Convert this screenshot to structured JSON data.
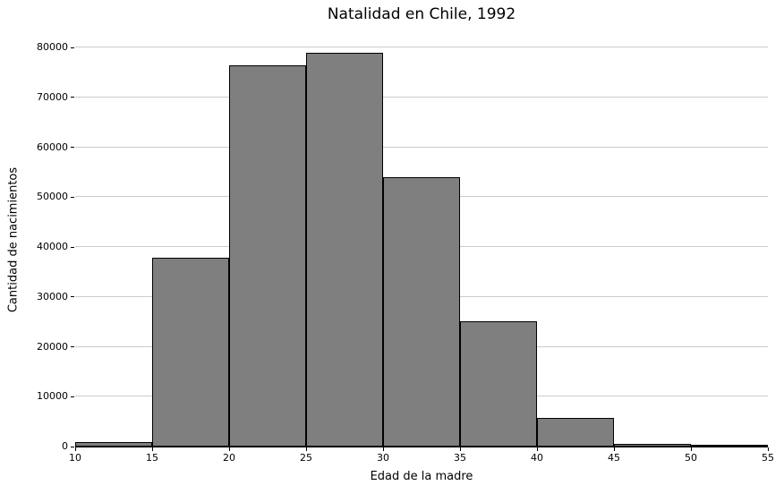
{
  "chart_data": {
    "type": "bar",
    "subtype": "histogram",
    "title": "Natalidad en Chile, 1992",
    "xlabel": "Edad de la madre",
    "ylabel": "Cantidad de nacimientos",
    "bin_edges": [
      10,
      15,
      20,
      25,
      30,
      35,
      40,
      45,
      50,
      55
    ],
    "counts": [
      900,
      37800,
      76400,
      78900,
      54100,
      25100,
      5700,
      500,
      150
    ],
    "xticks": [
      10,
      15,
      20,
      25,
      30,
      35,
      40,
      45,
      50,
      55
    ],
    "yticks": [
      0,
      10000,
      20000,
      30000,
      40000,
      50000,
      60000,
      70000,
      80000
    ],
    "xlim": [
      10,
      55
    ],
    "ylim": [
      0,
      82900
    ],
    "grid": "horizontal gridlines only, no top/right/left spines",
    "legend": "none",
    "colors": {
      "bar_fill": "#7f7f7f",
      "bar_edge": "#000000",
      "gridline": "#cccccc",
      "text": "#000000",
      "background": "#ffffff"
    }
  }
}
